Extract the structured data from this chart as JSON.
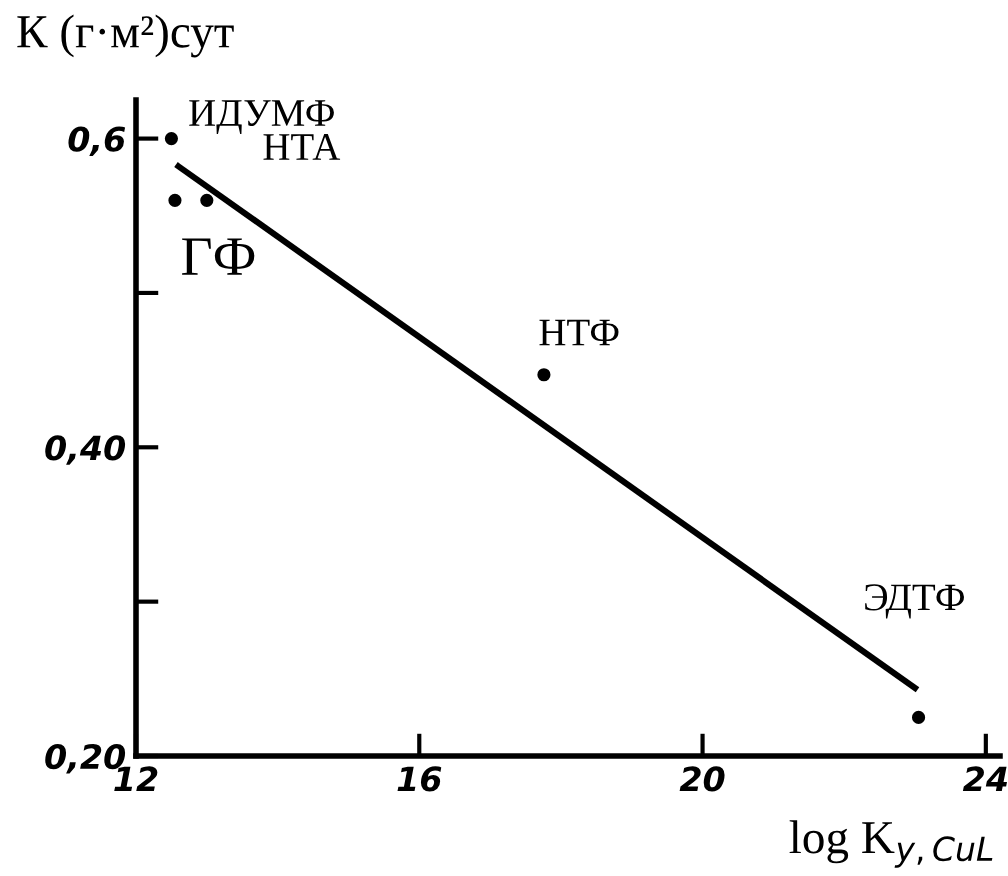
{
  "chart_data": {
    "type": "scatter",
    "ylabel": "К (г·м²)сут",
    "xlabel": "log K$_{y,CuL}$",
    "x": [
      12.5,
      12.55,
      13.0,
      17.76,
      23.05
    ],
    "series": [
      {
        "color": "#000000",
        "values": [
          0.6,
          0.56,
          0.56,
          0.447,
          0.225
        ],
        "marker": "circle"
      },
      {
        "type": "line",
        "color": "#000000",
        "x": [
          12.6,
          23.0
        ],
        "values": [
          0.582,
          0.244
        ],
        "marker": "none",
        "line_style": "solid"
      }
    ],
    "annotations": [
      {
        "text": "ИДУМФ",
        "x": 12.5,
        "y": 0.6
      },
      {
        "text": "ГФ",
        "x": 12.55,
        "y": 0.56
      },
      {
        "text": "НТА",
        "x": 13.0,
        "y": 0.56
      },
      {
        "text": "НТФ",
        "x": 17.76,
        "y": 0.447
      },
      {
        "text": "ЭДТФ",
        "x": 23.05,
        "y": 0.225
      }
    ],
    "xlim": [
      12,
      24.2
    ],
    "ylim": [
      0.2,
      0.625
    ],
    "xticks": [
      12,
      16,
      20,
      24
    ],
    "yticks": [
      {
        "value": 0.6,
        "label": "0,6"
      },
      {
        "value": 0.5,
        "label": null
      },
      {
        "value": 0.4,
        "label": "0,40"
      },
      {
        "value": 0.3,
        "label": null
      },
      {
        "value": 0.2,
        "label": "0,20"
      }
    ],
    "grid": false,
    "legend": false
  }
}
